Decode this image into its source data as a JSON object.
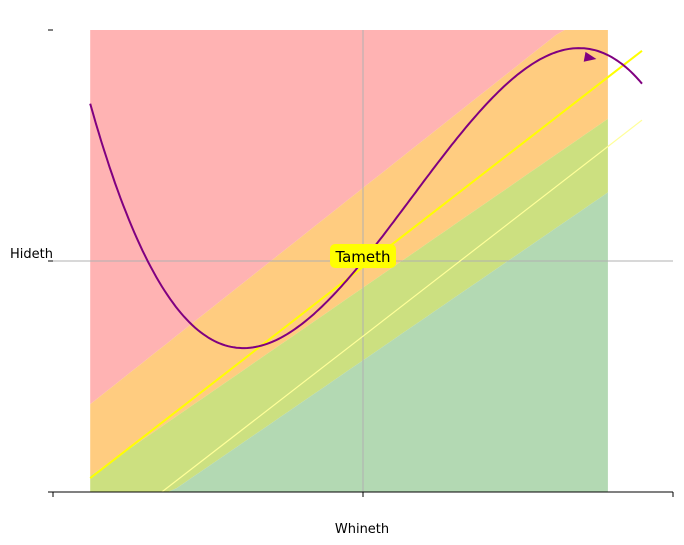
{
  "chart_data": {
    "type": "area",
    "xlabel": "Whineth",
    "ylabel": "Hideth",
    "xlim": [
      0,
      1
    ],
    "ylim": [
      0,
      1
    ],
    "grid": true,
    "annotation": {
      "text": "Tameth",
      "x": 0.5,
      "y": 0.5,
      "box_color": "#ffff00"
    },
    "bands": [
      {
        "name": "red",
        "color": "#ffb3b3",
        "lower_from": [
          0.06,
          0.19
        ],
        "lower_to": [
          1.0,
          1.19
        ],
        "upper": 1.0
      },
      {
        "name": "orange",
        "color": "#ffcc80",
        "lower_from": [
          0.06,
          0.035
        ],
        "lower_to": [
          1.0,
          0.905
        ],
        "upper_from": [
          0.06,
          0.19
        ],
        "upper_to": [
          1.0,
          1.19
        ]
      },
      {
        "name": "yellow-green",
        "color": "#cce080",
        "lower_from": [
          0.06,
          -0.12
        ],
        "lower_to": [
          1.0,
          0.745
        ],
        "upper_from": [
          0.06,
          0.035
        ],
        "upper_to": [
          1.0,
          0.905
        ]
      },
      {
        "name": "green",
        "color": "#b3d9b3",
        "lower": 0.0,
        "upper_from": [
          0.06,
          -0.12
        ],
        "upper_to": [
          1.0,
          0.745
        ]
      }
    ],
    "band_x_range": [
      0.06,
      0.895
    ],
    "lines": [
      {
        "name": "yellow-line",
        "color": "#ffff00",
        "from": [
          0.06,
          0.03
        ],
        "to": [
          0.95,
          0.955
        ],
        "width": 2
      },
      {
        "name": "faint-line",
        "color": "#ffff99",
        "from": [
          0.06,
          -0.12
        ],
        "to": [
          0.95,
          0.805
        ],
        "width": 1.2
      }
    ],
    "curve": {
      "name": "purple-curve",
      "color": "#800080",
      "x_range": [
        0.06,
        0.95
      ],
      "poly": {
        "center": 0.5,
        "a": -8.18,
        "b": 1.91,
        "c": 1.65,
        "d": 0.5
      }
    },
    "arrow": {
      "color": "#800080",
      "at": [
        0.865,
        0.94
      ],
      "direction": [
        1,
        -0.18
      ]
    }
  }
}
